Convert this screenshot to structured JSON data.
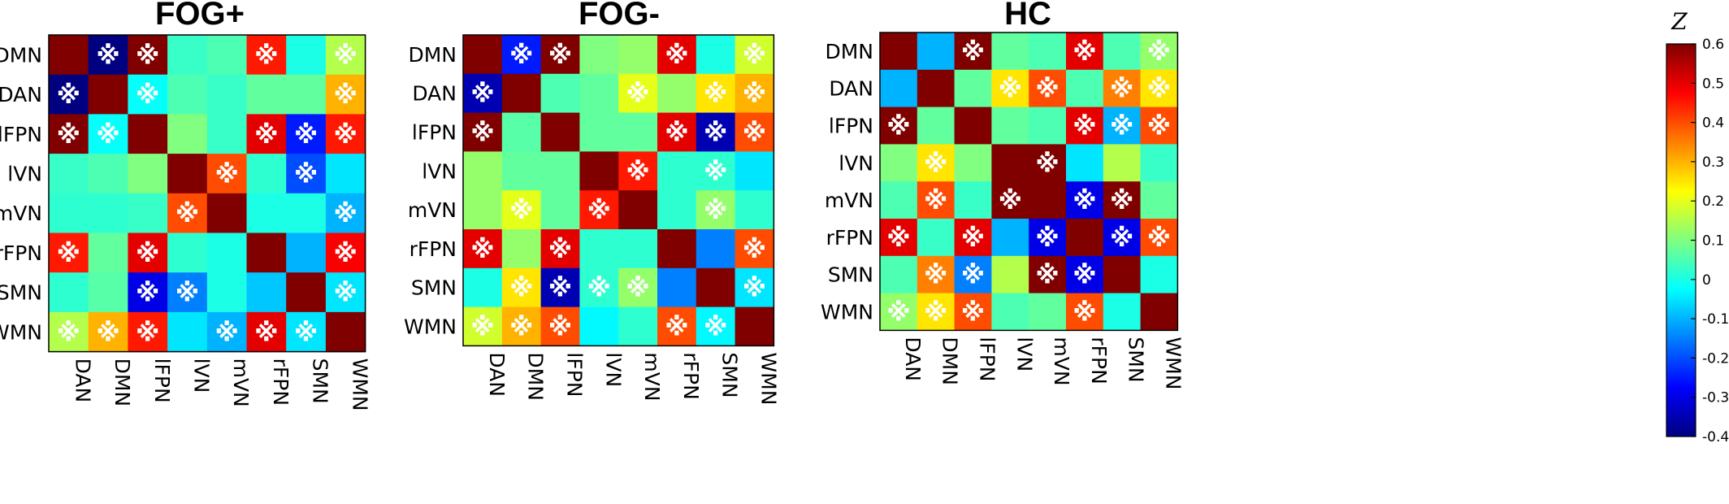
{
  "chart_data": [
    {
      "type": "heatmap",
      "title": "FOG+",
      "rows": [
        "DMN",
        "DAN",
        "lFPN",
        "lVN",
        "mVN",
        "rFPN",
        "SMN",
        "WMN"
      ],
      "columns": [
        "DAN",
        "DMN",
        "lFPN",
        "lVN",
        "mVN",
        "rFPN",
        "SMN",
        "WMN"
      ],
      "values": [
        [
          0.6,
          -0.4,
          0.6,
          0.03,
          0.05,
          0.45,
          0.0,
          0.15
        ],
        [
          -0.4,
          0.6,
          -0.02,
          0.05,
          0.03,
          0.07,
          0.07,
          0.3
        ],
        [
          0.6,
          -0.02,
          0.6,
          0.1,
          0.03,
          0.5,
          -0.25,
          0.45
        ],
        [
          0.03,
          0.05,
          0.1,
          0.6,
          0.4,
          0.02,
          -0.2,
          -0.05
        ],
        [
          0.02,
          0.02,
          0.03,
          0.4,
          0.6,
          0.0,
          0.0,
          -0.1
        ],
        [
          0.45,
          0.07,
          0.5,
          0.02,
          0.0,
          0.6,
          -0.1,
          0.48
        ],
        [
          0.02,
          0.06,
          -0.3,
          -0.15,
          0.0,
          -0.08,
          0.6,
          -0.05
        ],
        [
          0.15,
          0.3,
          0.45,
          -0.05,
          -0.1,
          0.5,
          -0.05,
          0.6
        ]
      ],
      "significant": [
        [
          0,
          1,
          1,
          0,
          0,
          1,
          0,
          1
        ],
        [
          1,
          0,
          1,
          0,
          0,
          0,
          0,
          1
        ],
        [
          1,
          1,
          0,
          0,
          0,
          1,
          1,
          1
        ],
        [
          0,
          0,
          0,
          0,
          1,
          0,
          1,
          0
        ],
        [
          0,
          0,
          0,
          1,
          0,
          0,
          0,
          1
        ],
        [
          1,
          0,
          1,
          0,
          0,
          0,
          0,
          1
        ],
        [
          0,
          0,
          1,
          1,
          0,
          0,
          0,
          1
        ],
        [
          1,
          1,
          1,
          0,
          1,
          1,
          1,
          0
        ]
      ]
    },
    {
      "type": "heatmap",
      "title": "FOG-",
      "rows": [
        "DMN",
        "DAN",
        "lFPN",
        "lVN",
        "mVN",
        "rFPN",
        "SMN",
        "WMN"
      ],
      "columns": [
        "DAN",
        "DMN",
        "lFPN",
        "lVN",
        "mVN",
        "rFPN",
        "SMN",
        "WMN"
      ],
      "values": [
        [
          0.6,
          -0.25,
          0.6,
          0.1,
          0.12,
          0.5,
          0.0,
          0.18
        ],
        [
          -0.35,
          0.6,
          0.05,
          0.07,
          0.2,
          0.12,
          0.25,
          0.3
        ],
        [
          0.6,
          0.06,
          0.6,
          0.07,
          0.07,
          0.5,
          -0.35,
          0.4
        ],
        [
          0.12,
          0.07,
          0.07,
          0.6,
          0.45,
          0.02,
          0.02,
          -0.05
        ],
        [
          0.12,
          0.2,
          0.07,
          0.45,
          0.6,
          0.02,
          0.12,
          0.02
        ],
        [
          0.5,
          0.12,
          0.5,
          0.02,
          0.02,
          0.6,
          -0.15,
          0.4
        ],
        [
          0.0,
          0.25,
          -0.35,
          0.02,
          0.12,
          -0.15,
          0.6,
          -0.05
        ],
        [
          0.18,
          0.3,
          0.4,
          -0.03,
          0.02,
          0.4,
          -0.03,
          0.6
        ]
      ],
      "significant": [
        [
          0,
          1,
          1,
          0,
          0,
          1,
          0,
          1
        ],
        [
          1,
          0,
          0,
          0,
          1,
          0,
          1,
          1
        ],
        [
          1,
          0,
          0,
          0,
          0,
          1,
          1,
          1
        ],
        [
          0,
          0,
          0,
          0,
          1,
          0,
          1,
          0
        ],
        [
          0,
          1,
          0,
          1,
          0,
          0,
          1,
          0
        ],
        [
          1,
          0,
          1,
          0,
          0,
          0,
          0,
          1
        ],
        [
          0,
          1,
          1,
          1,
          1,
          0,
          0,
          1
        ],
        [
          1,
          1,
          1,
          0,
          0,
          1,
          1,
          0
        ]
      ]
    },
    {
      "type": "heatmap",
      "title": "HC",
      "rows": [
        "DMN",
        "DAN",
        "lFPN",
        "lVN",
        "mVN",
        "rFPN",
        "SMN",
        "WMN"
      ],
      "columns": [
        "DAN",
        "DMN",
        "lFPN",
        "lVN",
        "mVN",
        "rFPN",
        "SMN",
        "WMN"
      ],
      "values": [
        [
          0.6,
          -0.1,
          0.6,
          0.07,
          0.05,
          0.5,
          0.05,
          0.12
        ],
        [
          -0.1,
          0.6,
          0.07,
          0.25,
          0.4,
          0.05,
          0.35,
          0.25
        ],
        [
          0.6,
          0.07,
          0.6,
          0.07,
          0.05,
          0.5,
          -0.1,
          0.4
        ],
        [
          0.1,
          0.25,
          0.1,
          0.6,
          0.6,
          -0.05,
          0.15,
          0.03
        ],
        [
          0.05,
          0.4,
          0.03,
          0.6,
          0.6,
          -0.3,
          0.6,
          0.07
        ],
        [
          0.5,
          0.03,
          0.5,
          -0.1,
          -0.3,
          0.6,
          -0.3,
          0.4
        ],
        [
          0.05,
          0.35,
          -0.15,
          0.15,
          0.6,
          -0.3,
          0.6,
          0.0
        ],
        [
          0.12,
          0.25,
          0.4,
          0.05,
          0.07,
          0.4,
          0.0,
          0.6
        ]
      ],
      "significant": [
        [
          0,
          0,
          1,
          0,
          0,
          1,
          0,
          1
        ],
        [
          0,
          0,
          0,
          1,
          1,
          0,
          1,
          1
        ],
        [
          1,
          0,
          0,
          0,
          0,
          1,
          1,
          1
        ],
        [
          0,
          1,
          0,
          0,
          1,
          0,
          0,
          0
        ],
        [
          0,
          1,
          0,
          1,
          0,
          1,
          1,
          0
        ],
        [
          1,
          0,
          1,
          0,
          1,
          0,
          1,
          1
        ],
        [
          0,
          1,
          1,
          0,
          1,
          1,
          0,
          0
        ],
        [
          1,
          1,
          1,
          0,
          0,
          1,
          0,
          0
        ]
      ]
    }
  ],
  "marker_symbol": "※",
  "colorbar": {
    "label": "Z",
    "min": -0.4,
    "max": 0.6,
    "colormap": "jet",
    "ticks": [
      0.6,
      0.5,
      0.4,
      0.3,
      0.2,
      0.1,
      0,
      -0.1,
      -0.2,
      -0.3,
      -0.4
    ],
    "tick_labels": [
      "0.6",
      "0.5",
      "0.4",
      "0.3",
      "0.2",
      "0.1",
      "0",
      "-0.1",
      "-0.2",
      "-0.3",
      "-0.4"
    ]
  }
}
